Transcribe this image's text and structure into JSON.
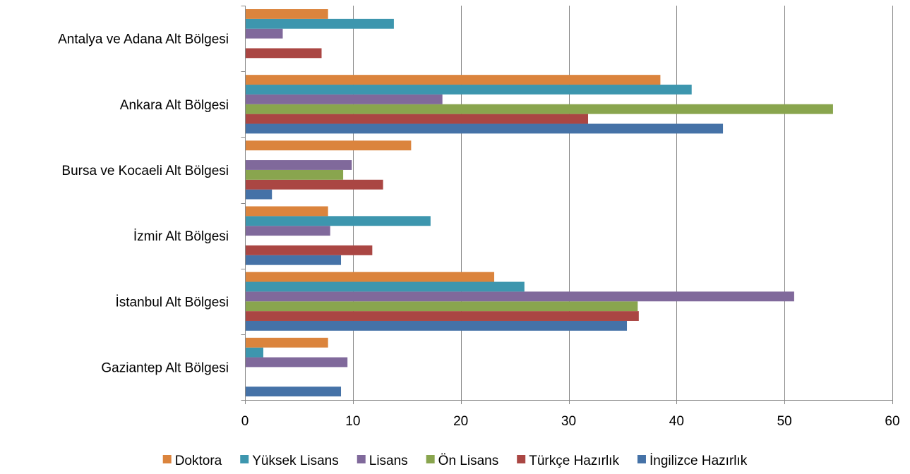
{
  "chart_data": {
    "type": "bar",
    "orientation": "horizontal",
    "categories": [
      "Gaziantep Alt Bölgesi",
      "İstanbul Alt Bölgesi",
      "İzmir Alt Bölgesi",
      "Bursa ve Kocaeli Alt Bölgesi",
      "Ankara Alt Bölgesi",
      "Antalya ve Adana Alt Bölgesi"
    ],
    "series": [
      {
        "name": "İngilizce Hazırlık",
        "color": "#4572A7",
        "values": [
          8.9,
          35.4,
          8.9,
          2.5,
          44.3,
          0
        ]
      },
      {
        "name": "Türkçe Hazırlık",
        "color": "#AA4643",
        "values": [
          0,
          36.5,
          11.8,
          12.8,
          31.8,
          7.1
        ]
      },
      {
        "name": "Ön Lisans",
        "color": "#89A54E",
        "values": [
          0,
          36.4,
          0,
          9.1,
          54.5,
          0
        ]
      },
      {
        "name": "Lisans",
        "color": "#80699B",
        "values": [
          9.5,
          50.9,
          7.9,
          9.9,
          18.3,
          3.5
        ]
      },
      {
        "name": "Yüksek Lisans",
        "color": "#3D96AE",
        "values": [
          1.7,
          25.9,
          17.2,
          0,
          41.4,
          13.8
        ]
      },
      {
        "name": "Doktora",
        "color": "#DB843D",
        "values": [
          7.7,
          23.1,
          7.7,
          15.4,
          38.5,
          7.7
        ]
      }
    ],
    "legend_order": [
      "Doktora",
      "Yüksek Lisans",
      "Lisans",
      "Ön Lisans",
      "Türkçe Hazırlık",
      "İngilizce Hazırlık"
    ],
    "xlim": [
      0,
      60
    ],
    "xticks": [
      0,
      10,
      20,
      30,
      40,
      50,
      60
    ],
    "grid": true,
    "legend_position": "bottom"
  }
}
